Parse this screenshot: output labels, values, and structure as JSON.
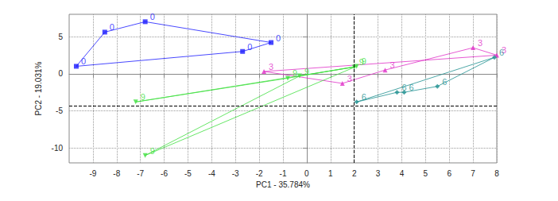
{
  "chart_data": {
    "type": "scatter",
    "x_label": "PC1 - 35.784%",
    "y_label": "PC2 - 19.031%",
    "xlim": [
      -10,
      8
    ],
    "xticks": [
      -9,
      -8,
      -7,
      -6,
      -5,
      -4,
      -3,
      -2,
      -1,
      0,
      1,
      2,
      3,
      4,
      5,
      6,
      7,
      8
    ],
    "ylim": [
      -12,
      8
    ],
    "yticks": [
      -10,
      -5,
      0,
      5
    ],
    "grid": true,
    "reference_lines": {
      "x": 2,
      "y": -4.3
    },
    "series": [
      {
        "name": "0",
        "color": "#1a1aff",
        "marker": "square",
        "x": [
          -9.7,
          -8.5,
          -6.8,
          -1.5,
          -2.7
        ],
        "values": [
          1.0,
          5.6,
          7.0,
          4.2,
          3.0
        ]
      },
      {
        "name": "3",
        "color": "#e030c8",
        "marker": "triangle",
        "x": [
          -1.8,
          1.5,
          3.3,
          7.0,
          8.0
        ],
        "values": [
          0.3,
          -1.3,
          0.5,
          3.5,
          2.5
        ]
      },
      {
        "name": "6",
        "color": "#1f9090",
        "marker": "diamond",
        "x": [
          2.1,
          3.8,
          4.1,
          5.5,
          7.9
        ],
        "values": [
          -3.8,
          -2.5,
          -2.5,
          -1.7,
          2.2
        ]
      },
      {
        "name": "9",
        "color": "#40e040",
        "marker": "triangle",
        "x": [
          -7.2,
          2.0,
          -0.3,
          -6.8,
          2.1,
          -0.8
        ],
        "values": [
          -3.8,
          0.9,
          -0.3,
          -11.0,
          1.0,
          -0.6
        ]
      }
    ]
  }
}
